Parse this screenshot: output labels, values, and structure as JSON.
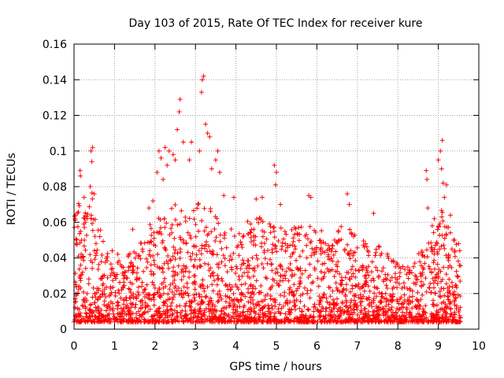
{
  "chart_data": {
    "type": "scatter",
    "title": "Day 103 of 2015, Rate Of TEC Index for receiver kure",
    "xlabel": "GPS time / hours",
    "ylabel": "ROTI / TECUs",
    "xlim": [
      0,
      10
    ],
    "ylim": [
      0,
      0.16
    ],
    "xticks": [
      0,
      1,
      2,
      3,
      4,
      5,
      6,
      7,
      8,
      9,
      10
    ],
    "xtick_labels": [
      "0",
      "1",
      "2",
      "3",
      "4",
      "5",
      "6",
      "7",
      "8",
      "9",
      "10"
    ],
    "yticks": [
      0,
      0.02,
      0.04,
      0.06,
      0.08,
      0.1,
      0.12,
      0.14,
      0.16
    ],
    "ytick_labels": [
      "0",
      "0.02",
      "0.04",
      "0.06",
      "0.08",
      "0.1",
      "0.12",
      "0.14",
      "0.16"
    ],
    "grid": true,
    "marker": "+",
    "color": "#ff0000",
    "x_data_range": [
      0,
      9.55
    ],
    "series": [
      {
        "name": "ROTI",
        "envelope": {
          "x": [
            0.0,
            0.1,
            0.2,
            0.3,
            0.45,
            0.55,
            0.7,
            0.9,
            1.2,
            1.5,
            1.8,
            2.0,
            2.2,
            2.4,
            2.6,
            2.8,
            3.0,
            3.2,
            3.4,
            3.6,
            3.8,
            4.0,
            4.3,
            4.6,
            5.0,
            5.3,
            5.6,
            6.0,
            6.3,
            6.6,
            6.9,
            7.2,
            7.5,
            7.8,
            8.1,
            8.4,
            8.7,
            8.9,
            9.1,
            9.3,
            9.55
          ],
          "upper": [
            0.066,
            0.072,
            0.074,
            0.068,
            0.077,
            0.06,
            0.054,
            0.05,
            0.04,
            0.045,
            0.055,
            0.066,
            0.07,
            0.075,
            0.07,
            0.065,
            0.07,
            0.075,
            0.068,
            0.06,
            0.058,
            0.056,
            0.062,
            0.064,
            0.06,
            0.055,
            0.06,
            0.058,
            0.052,
            0.062,
            0.055,
            0.05,
            0.048,
            0.042,
            0.035,
            0.038,
            0.05,
            0.055,
            0.07,
            0.055,
            0.045
          ]
        },
        "peaks": [
          {
            "x": 0.08,
            "y": 0.065
          },
          {
            "x": 0.15,
            "y": 0.089
          },
          {
            "x": 0.16,
            "y": 0.086
          },
          {
            "x": 0.25,
            "y": 0.074
          },
          {
            "x": 0.42,
            "y": 0.1
          },
          {
            "x": 0.46,
            "y": 0.102
          },
          {
            "x": 0.44,
            "y": 0.094
          },
          {
            "x": 0.4,
            "y": 0.08
          },
          {
            "x": 0.5,
            "y": 0.076
          },
          {
            "x": 1.45,
            "y": 0.056
          },
          {
            "x": 1.85,
            "y": 0.068
          },
          {
            "x": 1.95,
            "y": 0.072
          },
          {
            "x": 2.05,
            "y": 0.088
          },
          {
            "x": 2.1,
            "y": 0.1
          },
          {
            "x": 2.15,
            "y": 0.096
          },
          {
            "x": 2.25,
            "y": 0.102
          },
          {
            "x": 2.2,
            "y": 0.084
          },
          {
            "x": 2.3,
            "y": 0.092
          },
          {
            "x": 2.35,
            "y": 0.1
          },
          {
            "x": 2.45,
            "y": 0.098
          },
          {
            "x": 2.5,
            "y": 0.095
          },
          {
            "x": 2.55,
            "y": 0.112
          },
          {
            "x": 2.6,
            "y": 0.122
          },
          {
            "x": 2.62,
            "y": 0.129
          },
          {
            "x": 2.7,
            "y": 0.105
          },
          {
            "x": 2.85,
            "y": 0.095
          },
          {
            "x": 2.9,
            "y": 0.105
          },
          {
            "x": 3.1,
            "y": 0.1
          },
          {
            "x": 3.15,
            "y": 0.133
          },
          {
            "x": 3.17,
            "y": 0.14
          },
          {
            "x": 3.2,
            "y": 0.142
          },
          {
            "x": 3.25,
            "y": 0.115
          },
          {
            "x": 3.3,
            "y": 0.11
          },
          {
            "x": 3.35,
            "y": 0.108
          },
          {
            "x": 3.4,
            "y": 0.09
          },
          {
            "x": 3.5,
            "y": 0.095
          },
          {
            "x": 3.55,
            "y": 0.1
          },
          {
            "x": 3.6,
            "y": 0.088
          },
          {
            "x": 3.7,
            "y": 0.075
          },
          {
            "x": 3.95,
            "y": 0.074
          },
          {
            "x": 4.5,
            "y": 0.073
          },
          {
            "x": 4.65,
            "y": 0.074
          },
          {
            "x": 4.95,
            "y": 0.092
          },
          {
            "x": 5.0,
            "y": 0.088
          },
          {
            "x": 4.98,
            "y": 0.081
          },
          {
            "x": 5.1,
            "y": 0.07
          },
          {
            "x": 5.8,
            "y": 0.075
          },
          {
            "x": 5.85,
            "y": 0.074
          },
          {
            "x": 6.75,
            "y": 0.076
          },
          {
            "x": 6.8,
            "y": 0.07
          },
          {
            "x": 7.4,
            "y": 0.065
          },
          {
            "x": 8.7,
            "y": 0.089
          },
          {
            "x": 8.72,
            "y": 0.084
          },
          {
            "x": 8.74,
            "y": 0.068
          },
          {
            "x": 8.9,
            "y": 0.062
          },
          {
            "x": 8.85,
            "y": 0.058
          },
          {
            "x": 9.0,
            "y": 0.095
          },
          {
            "x": 9.05,
            "y": 0.1
          },
          {
            "x": 9.1,
            "y": 0.106
          },
          {
            "x": 9.08,
            "y": 0.09
          },
          {
            "x": 9.12,
            "y": 0.082
          },
          {
            "x": 9.2,
            "y": 0.081
          },
          {
            "x": 9.15,
            "y": 0.074
          },
          {
            "x": 9.3,
            "y": 0.064
          },
          {
            "x": 9.4,
            "y": 0.05
          },
          {
            "x": 9.5,
            "y": 0.048
          }
        ]
      }
    ]
  }
}
